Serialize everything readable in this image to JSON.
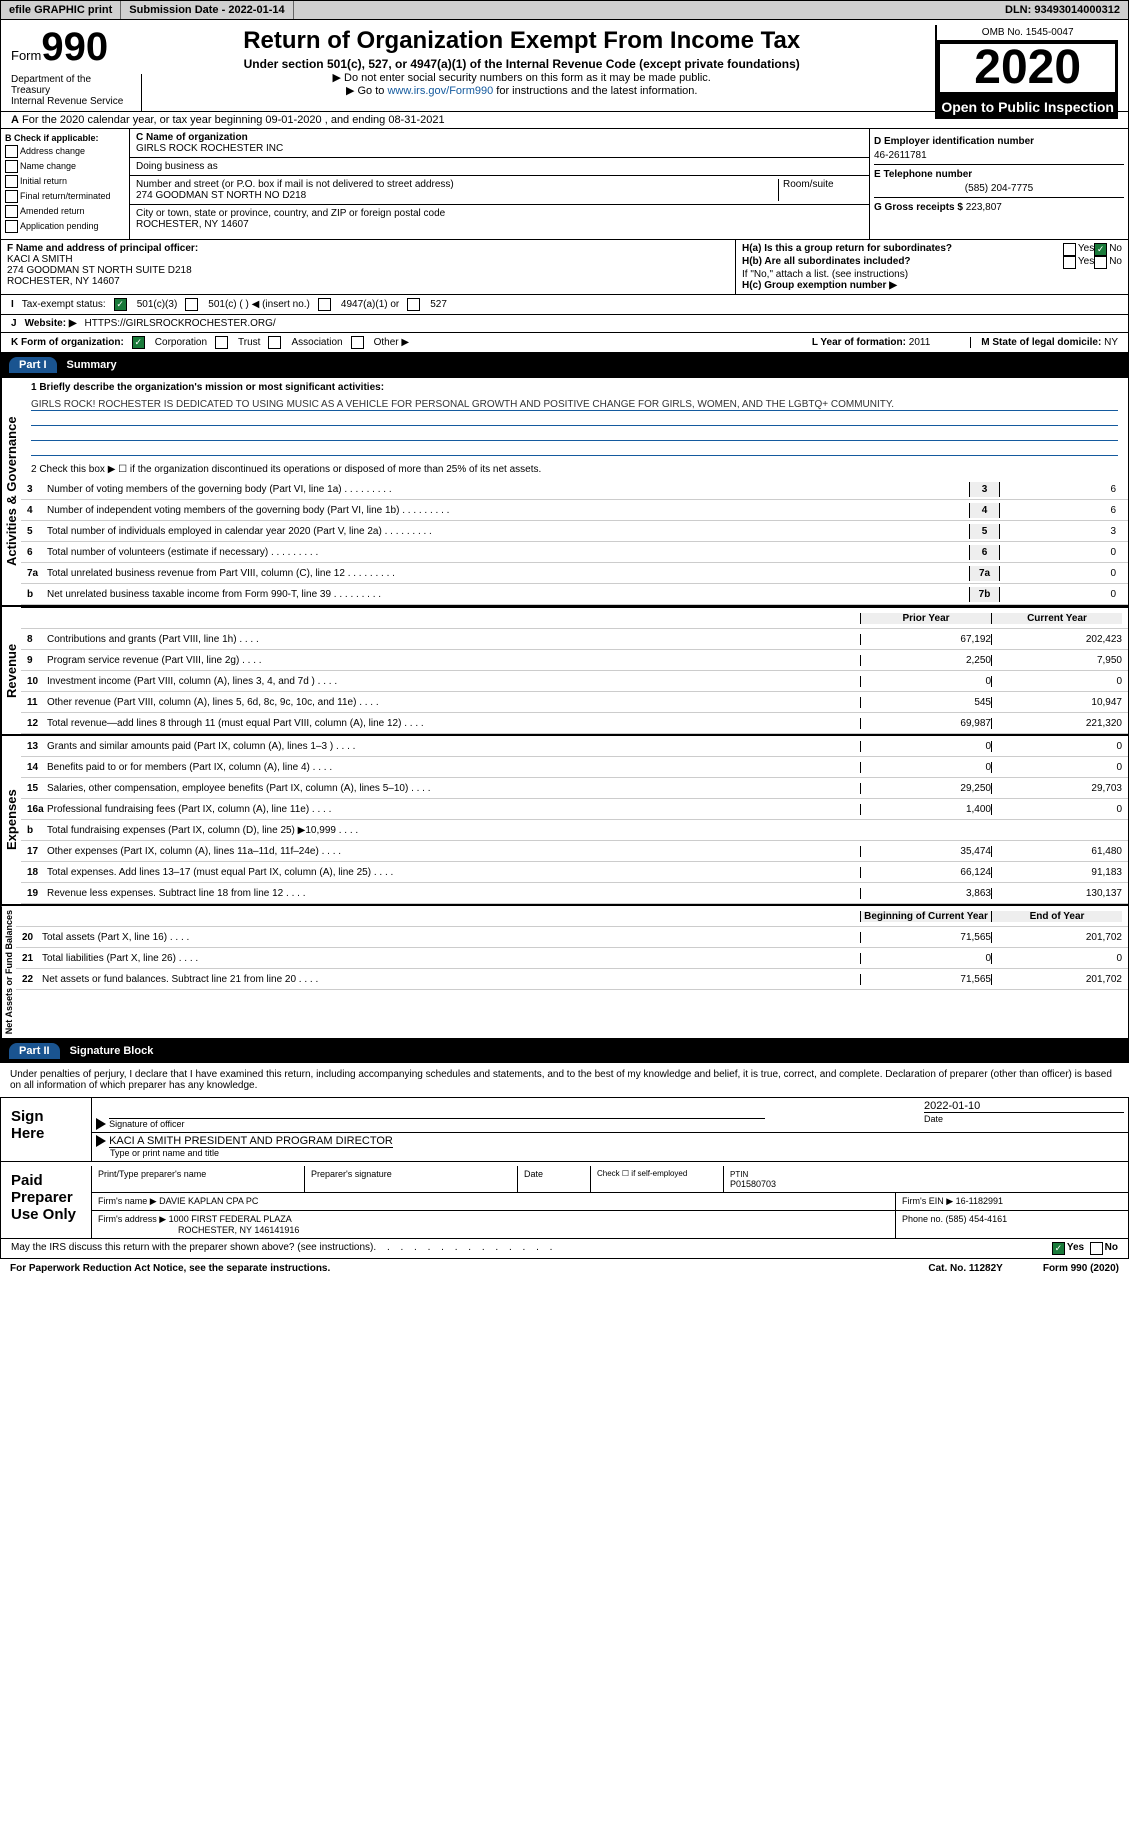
{
  "topbar": {
    "efile": "efile GRAPHIC print",
    "subLabel": "Submission Date - ",
    "subDate": "2022-01-14",
    "dlnLabel": "DLN: ",
    "dln": "93493014000312"
  },
  "header": {
    "formWord": "Form",
    "form990": "990",
    "title": "Return of Organization Exempt From Income Tax",
    "sub": "Under section 501(c), 527, or 4947(a)(1) of the Internal Revenue Code (except private foundations)",
    "note1": "▶ Do not enter social security numbers on this form as it may be made public.",
    "note2Prefix": "▶ Go to ",
    "note2Link": "www.irs.gov/Form990",
    "note2Suffix": " for instructions and the latest information.",
    "dept": "Department of the Treasury\nInternal Revenue Service",
    "omb": "OMB No. 1545-0047",
    "year": "2020",
    "pub": "Open to Public Inspection"
  },
  "rowA": "For the 2020 calendar year, or tax year beginning 09-01-2020   , and ending 08-31-2021",
  "colB": {
    "hdr": "B Check if applicable:",
    "opts": [
      "Address change",
      "Name change",
      "Initial return",
      "Final return/terminated",
      "Amended return",
      "Application pending"
    ]
  },
  "colC": {
    "nameLbl": "C Name of organization",
    "name": "GIRLS ROCK ROCHESTER INC",
    "dba": "Doing business as",
    "addrLbl": "Number and street (or P.O. box if mail is not delivered to street address)",
    "addr": "274 GOODMAN ST NORTH NO D218",
    "room": "Room/suite",
    "cityLbl": "City or town, state or province, country, and ZIP or foreign postal code",
    "city": "ROCHESTER, NY  14607"
  },
  "colD": {
    "einLbl": "D Employer identification number",
    "ein": "46-2611781",
    "telLbl": "E Telephone number",
    "tel": "(585) 204-7775",
    "grLbl": "G Gross receipts $ ",
    "gr": "223,807"
  },
  "rowF": {
    "fLbl": "F  Name and address of principal officer:",
    "fName": "KACI A SMITH",
    "fAddr1": "274 GOODMAN ST NORTH SUITE D218",
    "fAddr2": "ROCHESTER, NY  14607",
    "ha": "H(a)  Is this a group return for subordinates?",
    "hb": "H(b)  Are all subordinates included?",
    "hbNote": "If \"No,\" attach a list. (see instructions)",
    "hc": "H(c)  Group exemption number ▶",
    "yes": "Yes",
    "no": "No"
  },
  "rowI": {
    "lbl": "Tax-exempt status:",
    "o1": "501(c)(3)",
    "o2": "501(c) (   ) ◀ (insert no.)",
    "o3": "4947(a)(1) or",
    "o4": "527"
  },
  "rowJ": {
    "lbl": "Website: ▶",
    "url": "HTTPS://GIRLSROCKROCHESTER.ORG/"
  },
  "rowK": {
    "lbl": "K Form of organization:",
    "o1": "Corporation",
    "o2": "Trust",
    "o3": "Association",
    "o4": "Other ▶",
    "yrLbl": "L Year of formation: ",
    "yr": "2011",
    "stLbl": "M State of legal domicile: ",
    "st": "NY"
  },
  "part1": {
    "hdr": "Part I",
    "title": "Summary"
  },
  "gov": {
    "l1": "1  Briefly describe the organization's mission or most significant activities:",
    "mission": "GIRLS ROCK! ROCHESTER IS DEDICATED TO USING MUSIC AS A VEHICLE FOR PERSONAL GROWTH AND POSITIVE CHANGE FOR GIRLS, WOMEN, AND THE LGBTQ+ COMMUNITY.",
    "l2": "2   Check this box ▶ ☐  if the organization discontinued its operations or disposed of more than 25% of its net assets.",
    "lines": [
      {
        "n": "3",
        "t": "Number of voting members of the governing body (Part VI, line 1a)",
        "b": "3",
        "v": "6"
      },
      {
        "n": "4",
        "t": "Number of independent voting members of the governing body (Part VI, line 1b)",
        "b": "4",
        "v": "6"
      },
      {
        "n": "5",
        "t": "Total number of individuals employed in calendar year 2020 (Part V, line 2a)",
        "b": "5",
        "v": "3"
      },
      {
        "n": "6",
        "t": "Total number of volunteers (estimate if necessary)",
        "b": "6",
        "v": "0"
      },
      {
        "n": "7a",
        "t": "Total unrelated business revenue from Part VIII, column (C), line 12",
        "b": "7a",
        "v": "0"
      },
      {
        "n": "b",
        "t": "Net unrelated business taxable income from Form 990-T, line 39",
        "b": "7b",
        "v": "0"
      }
    ],
    "label": "Activities & Governance"
  },
  "rev": {
    "label": "Revenue",
    "priorHdr": "Prior Year",
    "currHdr": "Current Year",
    "lines": [
      {
        "n": "8",
        "t": "Contributions and grants (Part VIII, line 1h)",
        "p": "67,192",
        "c": "202,423"
      },
      {
        "n": "9",
        "t": "Program service revenue (Part VIII, line 2g)",
        "p": "2,250",
        "c": "7,950"
      },
      {
        "n": "10",
        "t": "Investment income (Part VIII, column (A), lines 3, 4, and 7d )",
        "p": "0",
        "c": "0"
      },
      {
        "n": "11",
        "t": "Other revenue (Part VIII, column (A), lines 5, 6d, 8c, 9c, 10c, and 11e)",
        "p": "545",
        "c": "10,947"
      },
      {
        "n": "12",
        "t": "Total revenue—add lines 8 through 11 (must equal Part VIII, column (A), line 12)",
        "p": "69,987",
        "c": "221,320"
      }
    ]
  },
  "exp": {
    "label": "Expenses",
    "lines": [
      {
        "n": "13",
        "t": "Grants and similar amounts paid (Part IX, column (A), lines 1–3 )",
        "p": "0",
        "c": "0"
      },
      {
        "n": "14",
        "t": "Benefits paid to or for members (Part IX, column (A), line 4)",
        "p": "0",
        "c": "0"
      },
      {
        "n": "15",
        "t": "Salaries, other compensation, employee benefits (Part IX, column (A), lines 5–10)",
        "p": "29,250",
        "c": "29,703"
      },
      {
        "n": "16a",
        "t": "Professional fundraising fees (Part IX, column (A), line 11e)",
        "p": "1,400",
        "c": "0"
      },
      {
        "n": "b",
        "t": "Total fundraising expenses (Part IX, column (D), line 25) ▶10,999",
        "p": "",
        "c": "",
        "shade": true
      },
      {
        "n": "17",
        "t": "Other expenses (Part IX, column (A), lines 11a–11d, 11f–24e)",
        "p": "35,474",
        "c": "61,480"
      },
      {
        "n": "18",
        "t": "Total expenses. Add lines 13–17 (must equal Part IX, column (A), line 25)",
        "p": "66,124",
        "c": "91,183"
      },
      {
        "n": "19",
        "t": "Revenue less expenses. Subtract line 18 from line 12",
        "p": "3,863",
        "c": "130,137"
      }
    ]
  },
  "net": {
    "label": "Net Assets or Fund Balances",
    "begHdr": "Beginning of Current Year",
    "endHdr": "End of Year",
    "lines": [
      {
        "n": "20",
        "t": "Total assets (Part X, line 16)",
        "p": "71,565",
        "c": "201,702"
      },
      {
        "n": "21",
        "t": "Total liabilities (Part X, line 26)",
        "p": "0",
        "c": "0"
      },
      {
        "n": "22",
        "t": "Net assets or fund balances. Subtract line 21 from line 20",
        "p": "71,565",
        "c": "201,702"
      }
    ]
  },
  "part2": {
    "hdr": "Part II",
    "title": "Signature Block"
  },
  "sig": {
    "decl": "Under penalties of perjury, I declare that I have examined this return, including accompanying schedules and statements, and to the best of my knowledge and belief, it is true, correct, and complete. Declaration of preparer (other than officer) is based on all information of which preparer has any knowledge.",
    "signHere": "Sign Here",
    "sigOfficer": "Signature of officer",
    "date": "Date",
    "sigDate": "2022-01-10",
    "typeName": "Type or print name and title",
    "officer": "KACI A SMITH PRESIDENT AND PROGRAM DIRECTOR",
    "paid": "Paid Preparer Use Only",
    "pname": "Print/Type preparer's name",
    "psig": "Preparer's signature",
    "pdate": "Date",
    "pcheck": "Check ☐ if self-employed",
    "ptinLbl": "PTIN",
    "ptin": "P01580703",
    "firmName": "Firm's name    ▶",
    "firm": "DAVIE KAPLAN CPA PC",
    "firmEinLbl": "Firm's EIN ▶",
    "firmEin": "16-1182991",
    "firmAddr": "Firm's address ▶",
    "addr": "1000 FIRST FEDERAL PLAZA",
    "addr2": "ROCHESTER, NY  146141916",
    "phoneLbl": "Phone no. ",
    "phone": "(585) 454-4161",
    "discuss": "May the IRS discuss this return with the preparer shown above? (see instructions)",
    "yes": "Yes",
    "no": "No"
  },
  "footer": {
    "l": "For Paperwork Reduction Act Notice, see the separate instructions.",
    "m": "Cat. No. 11282Y",
    "r": "Form 990 (2020)"
  }
}
